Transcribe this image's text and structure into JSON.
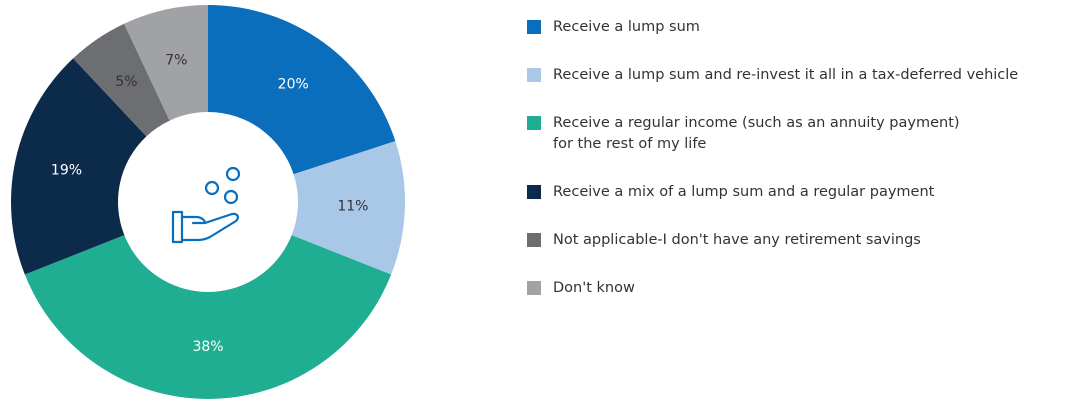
{
  "chart_data": {
    "type": "donut",
    "categories": [
      "Receive a lump sum",
      "Receive a lump sum and re-invest it all in a tax-deferred vehicle",
      "Receive a regular income (such as an annuity payment)\nfor the rest of my life",
      "Receive a mix of a lump sum and a regular payment",
      "Not applicable-I don't have any retirement savings",
      "Don't know"
    ],
    "values": [
      20,
      11,
      38,
      19,
      5,
      7
    ],
    "value_labels": [
      "20%",
      "11%",
      "38%",
      "19%",
      "5%",
      "7%"
    ],
    "colors": [
      "#0a6ebd",
      "#a9c8e8",
      "#1fae92",
      "#0c2a4a",
      "#6d6e71",
      "#a0a2a5"
    ],
    "legend": "right"
  }
}
